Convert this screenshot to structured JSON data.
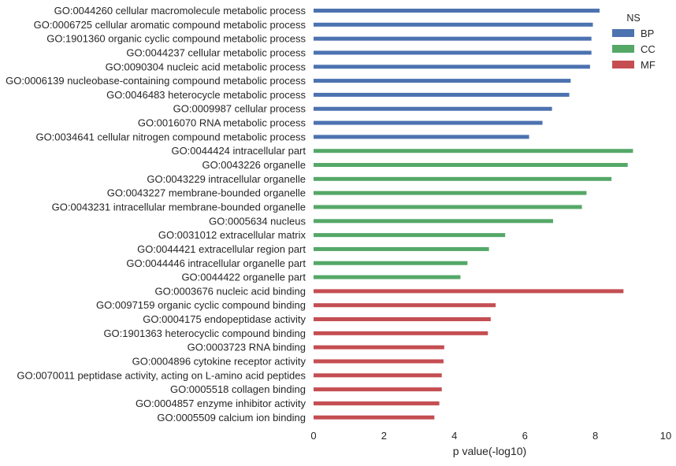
{
  "chart_data": {
    "type": "bar",
    "orientation": "horizontal",
    "xlabel": "p value(-log10)",
    "ylabel": "",
    "xlim": [
      0,
      10
    ],
    "xticks": [
      0,
      2,
      4,
      6,
      8,
      10
    ],
    "grid": false,
    "legend": {
      "title": "NS",
      "position": "top-right",
      "entries": [
        {
          "name": "BP",
          "color": "#4c72b0"
        },
        {
          "name": "CC",
          "color": "#55a868"
        },
        {
          "name": "MF",
          "color": "#c44e52"
        }
      ]
    },
    "bars": [
      {
        "label": "GO:0044260 cellular macromolecule metabolic process",
        "ns": "BP",
        "value": 8.12
      },
      {
        "label": "GO:0006725 cellular aromatic compound metabolic process",
        "ns": "BP",
        "value": 7.93
      },
      {
        "label": "GO:1901360 organic cyclic compound metabolic process",
        "ns": "BP",
        "value": 7.89
      },
      {
        "label": "GO:0044237 cellular metabolic process",
        "ns": "BP",
        "value": 7.89
      },
      {
        "label": "GO:0090304 nucleic acid metabolic process",
        "ns": "BP",
        "value": 7.85
      },
      {
        "label": "GO:0006139 nucleobase-containing compound metabolic process",
        "ns": "BP",
        "value": 7.3
      },
      {
        "label": "GO:0046483 heterocycle metabolic process",
        "ns": "BP",
        "value": 7.26
      },
      {
        "label": "GO:0009987 cellular process",
        "ns": "BP",
        "value": 6.77
      },
      {
        "label": "GO:0016070 RNA metabolic process",
        "ns": "BP",
        "value": 6.5
      },
      {
        "label": "GO:0034641 cellular nitrogen compound metabolic process",
        "ns": "BP",
        "value": 6.12
      },
      {
        "label": "GO:0044424 intracellular part",
        "ns": "CC",
        "value": 9.07
      },
      {
        "label": "GO:0043226 organelle",
        "ns": "CC",
        "value": 8.92
      },
      {
        "label": "GO:0043229 intracellular organelle",
        "ns": "CC",
        "value": 8.46
      },
      {
        "label": "GO:0043227 membrane-bounded organelle",
        "ns": "CC",
        "value": 7.75
      },
      {
        "label": "GO:0043231 intracellular membrane-bounded organelle",
        "ns": "CC",
        "value": 7.62
      },
      {
        "label": "GO:0005634 nucleus",
        "ns": "CC",
        "value": 6.8
      },
      {
        "label": "GO:0031012 extracellular matrix",
        "ns": "CC",
        "value": 5.44
      },
      {
        "label": "GO:0044421 extracellular region part",
        "ns": "CC",
        "value": 4.98
      },
      {
        "label": "GO:0044446 intracellular organelle part",
        "ns": "CC",
        "value": 4.37
      },
      {
        "label": "GO:0044422 organelle part",
        "ns": "CC",
        "value": 4.17
      },
      {
        "label": "GO:0003676 nucleic acid binding",
        "ns": "MF",
        "value": 8.8
      },
      {
        "label": "GO:0097159 organic cyclic compound binding",
        "ns": "MF",
        "value": 5.17
      },
      {
        "label": "GO:0004175 endopeptidase activity",
        "ns": "MF",
        "value": 5.03
      },
      {
        "label": "GO:1901363 heterocyclic compound binding",
        "ns": "MF",
        "value": 4.95
      },
      {
        "label": "GO:0003723 RNA binding",
        "ns": "MF",
        "value": 3.71
      },
      {
        "label": "GO:0004896 cytokine receptor activity",
        "ns": "MF",
        "value": 3.69
      },
      {
        "label": "GO:0070011 peptidase activity, acting on L-amino acid peptides",
        "ns": "MF",
        "value": 3.64
      },
      {
        "label": "GO:0005518 collagen binding",
        "ns": "MF",
        "value": 3.64
      },
      {
        "label": "GO:0004857 enzyme inhibitor activity",
        "ns": "MF",
        "value": 3.57
      },
      {
        "label": "GO:0005509 calcium ion binding",
        "ns": "MF",
        "value": 3.43
      }
    ]
  }
}
